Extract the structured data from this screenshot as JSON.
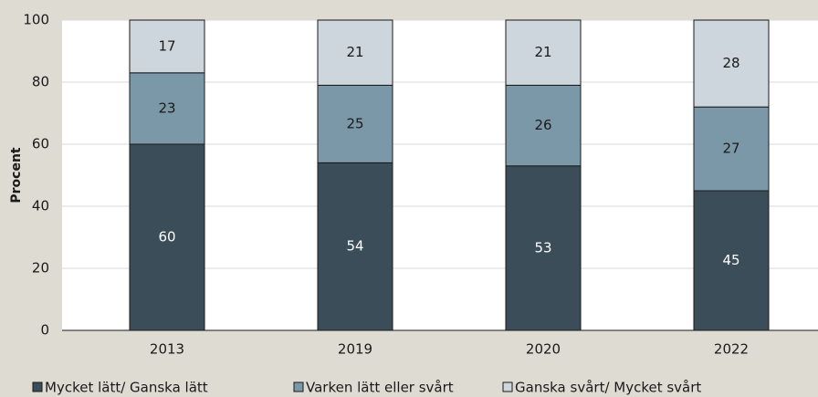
{
  "chart_data": {
    "type": "stacked_bar",
    "y_label": "Procent",
    "categories": [
      "2013",
      "2019",
      "2020",
      "2022"
    ],
    "series": [
      {
        "name": "Mycket lätt/ Ganska lätt",
        "color": "#3b4d59",
        "values": [
          60,
          54,
          53,
          45
        ]
      },
      {
        "name": "Varken lätt eller svårt",
        "color": "#7b98a9",
        "values": [
          23,
          25,
          26,
          27
        ]
      },
      {
        "name": "Ganska svårt/ Mycket svårt",
        "color": "#cdd6dc",
        "values": [
          17,
          21,
          21,
          28
        ]
      }
    ],
    "ylim": [
      0,
      100
    ],
    "yticks": [
      0,
      20,
      40,
      60,
      80,
      100
    ],
    "grid": true,
    "legend": "bottom"
  }
}
